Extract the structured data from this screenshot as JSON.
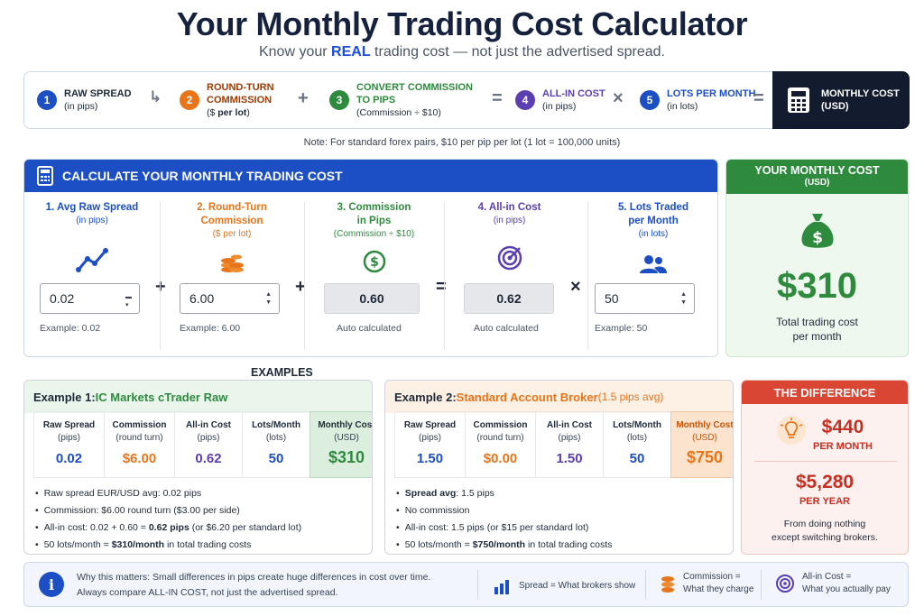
{
  "header": {
    "title": "Your Monthly Trading Cost Calculator",
    "subtitle_pre": "Know your ",
    "subtitle_em": "REAL",
    "subtitle_post": " trading cost — not just the advertised spread."
  },
  "formula": {
    "steps": [
      {
        "num": "1",
        "title": "RAW SPREAD",
        "sub": "(in pips)"
      },
      {
        "num": "2",
        "title": "ROUND-TURN",
        "title2": "COMMISSION",
        "sub_pre": "($ ",
        "sub_em": "per lot",
        "sub_post": ")"
      },
      {
        "num": "3",
        "title": "CONVERT COMMISSION",
        "title2": "TO PIPS",
        "sub": "(Commission ÷ $10)"
      },
      {
        "num": "4",
        "title": "ALL-IN COST",
        "sub": "(in pips)"
      },
      {
        "num": "5",
        "title": "LOTS PER MONTH",
        "sub": "(in lots)"
      }
    ],
    "ops": [
      "+",
      "+",
      "=",
      "×",
      "="
    ],
    "result_title": "MONTHLY COST",
    "result_sub": "(USD)"
  },
  "note": "Note: For standard forex pairs, $10 per pip per lot (1 lot = 100,000 units)",
  "calculator": {
    "title": "CALCULATE YOUR MONTHLY TRADING COST",
    "spread": {
      "title": "1. Avg Raw Spread",
      "sub": "(in pips)",
      "value": "0.02",
      "example": "Example: 0.02"
    },
    "commission": {
      "title": "2. Round-Turn",
      "title2": "Commission",
      "sub": "($ per lot)",
      "value": "6.00",
      "example": "Example: 6.00"
    },
    "pips": {
      "title": "3. Commission",
      "title2": "in Pips",
      "sub": "(Commission ÷ $10)",
      "value": "0.60",
      "example": "Auto calculated"
    },
    "allin": {
      "title": "4. All-in Cost",
      "sub": "(in pips)",
      "value": "0.62",
      "example": "Auto calculated"
    },
    "lots": {
      "title": "5. Lots Traded",
      "title2": "per Month",
      "sub": "(in lots)",
      "value": "50",
      "example": "Example: 50"
    },
    "ops": [
      "+",
      "+",
      "=",
      "×"
    ]
  },
  "monthly": {
    "title": "YOUR MONTHLY COST",
    "sub": "(USD)",
    "value": "$310",
    "caption1": "Total trading cost",
    "caption2": "per month"
  },
  "examples_label": "EXAMPLES",
  "example1": {
    "prefix": "Example 1: ",
    "name": "IC Markets cTrader Raw",
    "columns": [
      {
        "h": "Raw Spread",
        "s": "(pips)",
        "v": "0.02"
      },
      {
        "h": "Commission",
        "s": "(round turn)",
        "v": "$6.00"
      },
      {
        "h": "All-in Cost",
        "s": "(pips)",
        "v": "0.62"
      },
      {
        "h": "Lots/Month",
        "s": "(lots)",
        "v": "50"
      },
      {
        "h": "Monthly Cost",
        "s": "(USD)",
        "v": "$310"
      }
    ],
    "bullets": {
      "b1": "Raw spread EUR/USD avg: 0.02 pips",
      "b2": "Commission: $6.00 round turn ($3.00 per side)",
      "b3_pre": "All-in cost: 0.02 + 0.60 = ",
      "b3_em": "0.62 pips",
      "b3_post": " (or $6.20 per standard lot)",
      "b4_pre": "50 lots/month = ",
      "b4_em": "$310/month",
      "b4_post": " in total trading costs"
    }
  },
  "example2": {
    "prefix": "Example 2: ",
    "name": "Standard Account Broker",
    "name_sub": " (1.5 pips avg)",
    "columns": [
      {
        "h": "Raw Spread",
        "s": "(pips)",
        "v": "1.50"
      },
      {
        "h": "Commission",
        "s": "(round turn)",
        "v": "$0.00"
      },
      {
        "h": "All-in Cost",
        "s": "(pips)",
        "v": "1.50"
      },
      {
        "h": "Lots/Month",
        "s": "(lots)",
        "v": "50"
      },
      {
        "h": "Monthly Cost",
        "s": "(USD)",
        "v": "$750"
      }
    ],
    "bullets": {
      "b1_em": "Spread avg",
      "b1_post": ": 1.5 pips",
      "b2": "No commission",
      "b3": "All-in cost: 1.5 pips (or $15 per standard lot)",
      "b4_pre": "50 lots/month = ",
      "b4_em": "$750/month",
      "b4_post": " in total trading costs"
    }
  },
  "difference": {
    "title": "THE DIFFERENCE",
    "month_value": "$440",
    "month_label": "PER MONTH",
    "year_value": "$5,280",
    "year_label": "PER YEAR",
    "caption1": "From doing nothing",
    "caption2": "except switching brokers."
  },
  "footer": {
    "line1": "Why this matters: Small differences in pips create huge differences in cost over time.",
    "line2": "Always compare ALL-IN COST, not just the advertised spread.",
    "legend": [
      {
        "l1": "Spread = What brokers show"
      },
      {
        "l1": "Commission =",
        "l2": "What they charge"
      },
      {
        "l1": "All-in Cost =",
        "l2": "What you actually pay"
      }
    ]
  },
  "colors": {
    "blue": "#1d4fc4",
    "orange": "#e8751a",
    "green": "#2e8b3e",
    "purple": "#5b3fb0",
    "red": "#d94633",
    "navy": "#131c2e"
  }
}
